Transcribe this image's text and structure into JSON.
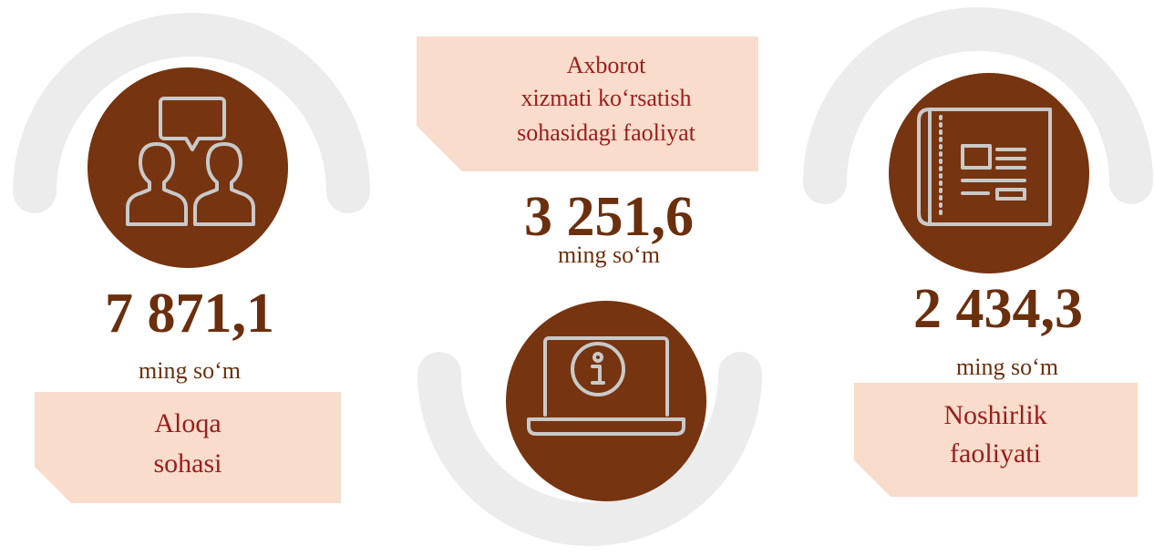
{
  "items": [
    {
      "value": "7 871,1",
      "unit": "ming so‘m",
      "label": [
        "Aloqa",
        "sohasi"
      ]
    },
    {
      "value": "3 251,6",
      "unit": "ming so‘m",
      "label": [
        "Axborot",
        "xizmati ko‘rsatish",
        "sohasidagi faoliyat"
      ]
    },
    {
      "value": "2 434,3",
      "unit": "ming so‘m",
      "label": [
        "Noshirlik",
        "faoliyati"
      ]
    }
  ]
}
